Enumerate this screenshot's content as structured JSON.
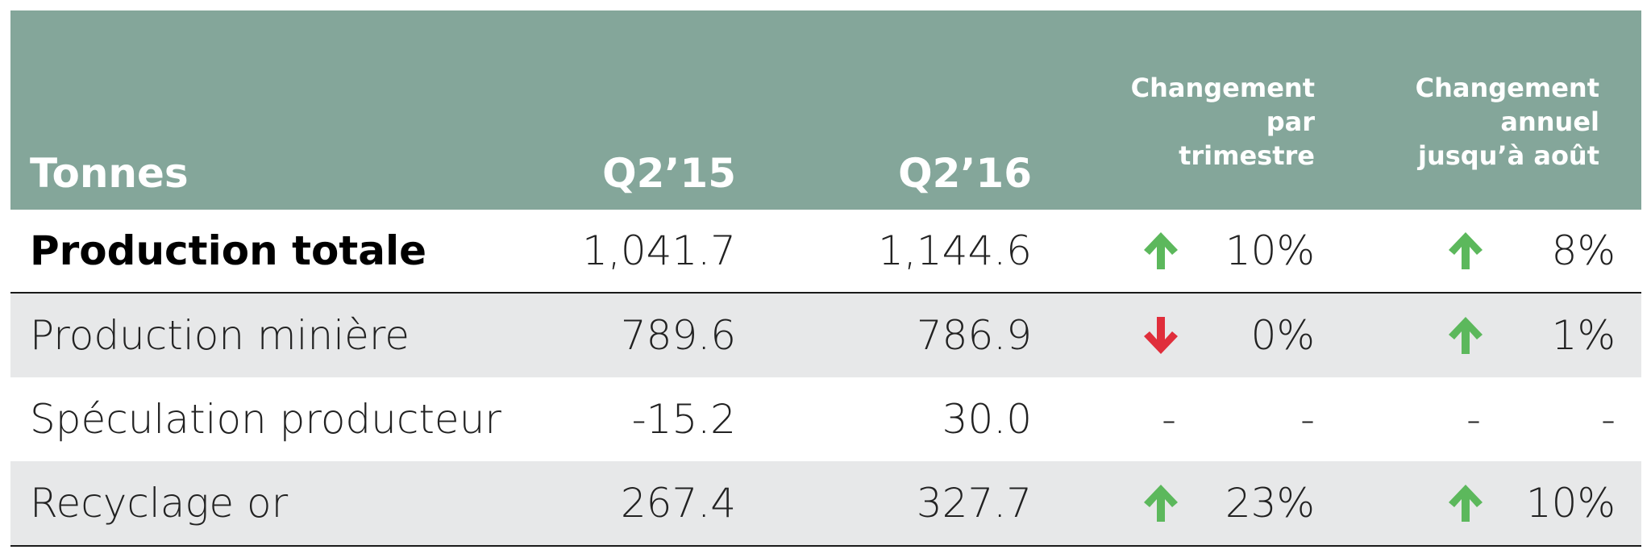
{
  "header": {
    "label": "Tonnes",
    "col1": "Q2’15",
    "col2": "Q2’16",
    "col3": [
      "Changement",
      "par",
      "trimestre"
    ],
    "col4": [
      "Changement",
      "annuel",
      "jusqu’à août"
    ]
  },
  "colors": {
    "header_bg": "#84a69a",
    "row_shade": "#e7e8e9",
    "up": "#5cb85c",
    "down": "#e02e3b"
  },
  "chart_data": {
    "type": "table",
    "columns": [
      "Tonnes",
      "Q2’15",
      "Q2’16",
      "Changement par trimestre",
      "Changement annuel jusqu’à août"
    ],
    "rows": [
      {
        "label": "Production totale",
        "q2_15": "1,041.7",
        "q2_16": "1,144.6",
        "qoq": "10%",
        "qoq_dir": "up",
        "ytd": "8%",
        "ytd_dir": "up"
      },
      {
        "label": "Production minière",
        "q2_15": "789.6",
        "q2_16": "786.9",
        "qoq": "0%",
        "qoq_dir": "down",
        "ytd": "1%",
        "ytd_dir": "up"
      },
      {
        "label": "Spéculation producteur",
        "q2_15": "-15.2",
        "q2_16": "30.0",
        "qoq": "-",
        "qoq_dir": "-",
        "ytd": "-",
        "ytd_dir": "-"
      },
      {
        "label": "Recyclage or",
        "q2_15": "267.4",
        "q2_16": "327.7",
        "qoq": "23%",
        "qoq_dir": "up",
        "ytd": "10%",
        "ytd_dir": "up"
      }
    ]
  }
}
